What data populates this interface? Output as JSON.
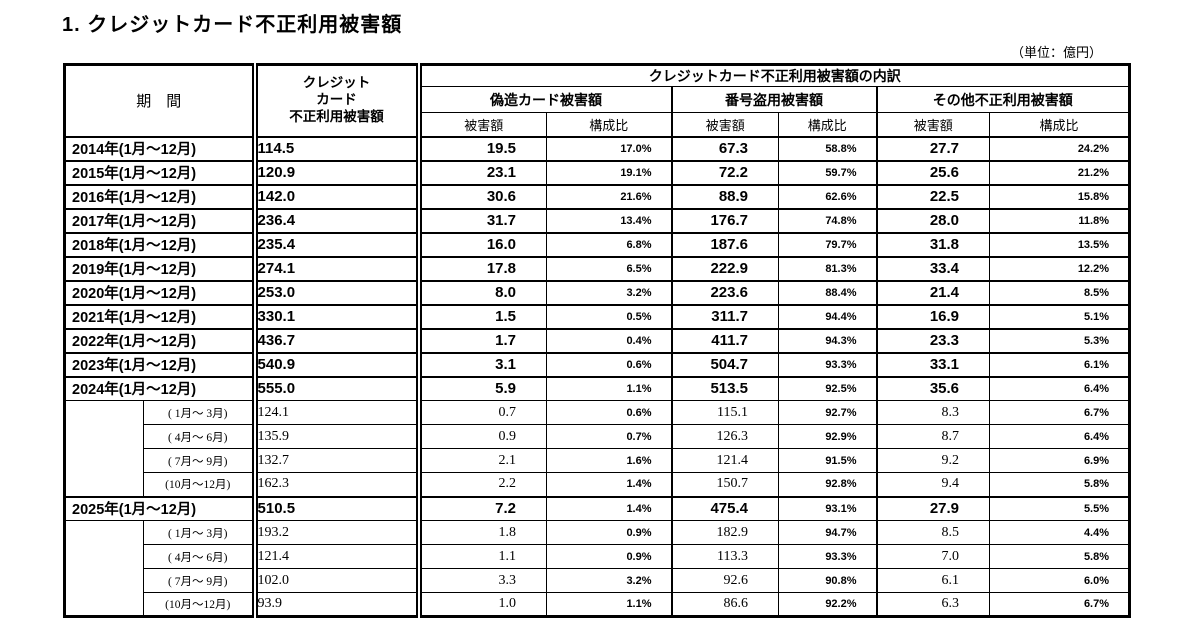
{
  "title": "1. クレジットカード不正利用被害額",
  "unit_note": "（単位：億円）",
  "table": {
    "headers": {
      "period": "期　間",
      "total_lines": [
        "クレジット",
        "カード",
        "不正利用被害額"
      ],
      "breakdown": "クレジットカード不正利用被害額の内訳",
      "groups": [
        "偽造カード被害額",
        "番号盗用被害額",
        "その他不正利用被害額"
      ],
      "sub_amount": "被害額",
      "sub_ratio": "構成比"
    },
    "rows": [
      {
        "type": "year",
        "period": "2014年(1月～12月)",
        "total": "114.5",
        "counterfeit": "19.5",
        "counterfeit_ratio": "17.0%",
        "number_theft": "67.3",
        "number_theft_ratio": "58.8%",
        "other": "27.7",
        "other_ratio": "24.2%"
      },
      {
        "type": "year",
        "period": "2015年(1月～12月)",
        "total": "120.9",
        "counterfeit": "23.1",
        "counterfeit_ratio": "19.1%",
        "number_theft": "72.2",
        "number_theft_ratio": "59.7%",
        "other": "25.6",
        "other_ratio": "21.2%"
      },
      {
        "type": "year",
        "period": "2016年(1月～12月)",
        "total": "142.0",
        "counterfeit": "30.6",
        "counterfeit_ratio": "21.6%",
        "number_theft": "88.9",
        "number_theft_ratio": "62.6%",
        "other": "22.5",
        "other_ratio": "15.8%"
      },
      {
        "type": "year",
        "period": "2017年(1月～12月)",
        "total": "236.4",
        "counterfeit": "31.7",
        "counterfeit_ratio": "13.4%",
        "number_theft": "176.7",
        "number_theft_ratio": "74.8%",
        "other": "28.0",
        "other_ratio": "11.8%"
      },
      {
        "type": "year",
        "period": "2018年(1月～12月)",
        "total": "235.4",
        "counterfeit": "16.0",
        "counterfeit_ratio": "6.8%",
        "number_theft": "187.6",
        "number_theft_ratio": "79.7%",
        "other": "31.8",
        "other_ratio": "13.5%"
      },
      {
        "type": "year",
        "period": "2019年(1月～12月)",
        "total": "274.1",
        "counterfeit": "17.8",
        "counterfeit_ratio": "6.5%",
        "number_theft": "222.9",
        "number_theft_ratio": "81.3%",
        "other": "33.4",
        "other_ratio": "12.2%"
      },
      {
        "type": "year",
        "period": "2020年(1月～12月)",
        "total": "253.0",
        "counterfeit": "8.0",
        "counterfeit_ratio": "3.2%",
        "number_theft": "223.6",
        "number_theft_ratio": "88.4%",
        "other": "21.4",
        "other_ratio": "8.5%"
      },
      {
        "type": "year",
        "period": "2021年(1月～12月)",
        "total": "330.1",
        "counterfeit": "1.5",
        "counterfeit_ratio": "0.5%",
        "number_theft": "311.7",
        "number_theft_ratio": "94.4%",
        "other": "16.9",
        "other_ratio": "5.1%"
      },
      {
        "type": "year",
        "period": "2022年(1月～12月)",
        "total": "436.7",
        "counterfeit": "1.7",
        "counterfeit_ratio": "0.4%",
        "number_theft": "411.7",
        "number_theft_ratio": "94.3%",
        "other": "23.3",
        "other_ratio": "5.3%"
      },
      {
        "type": "year",
        "period": "2023年(1月～12月)",
        "total": "540.9",
        "counterfeit": "3.1",
        "counterfeit_ratio": "0.6%",
        "number_theft": "504.7",
        "number_theft_ratio": "93.3%",
        "other": "33.1",
        "other_ratio": "6.1%"
      },
      {
        "type": "year",
        "period": "2024年(1月～12月)",
        "total": "555.0",
        "counterfeit": "5.9",
        "counterfeit_ratio": "1.1%",
        "number_theft": "513.5",
        "number_theft_ratio": "92.5%",
        "other": "35.6",
        "other_ratio": "6.4%"
      },
      {
        "type": "quarter",
        "period": "( 1月～ 3月)",
        "total": "124.1",
        "counterfeit": "0.7",
        "counterfeit_ratio": "0.6%",
        "number_theft": "115.1",
        "number_theft_ratio": "92.7%",
        "other": "8.3",
        "other_ratio": "6.7%"
      },
      {
        "type": "quarter",
        "period": "( 4月～ 6月)",
        "total": "135.9",
        "counterfeit": "0.9",
        "counterfeit_ratio": "0.7%",
        "number_theft": "126.3",
        "number_theft_ratio": "92.9%",
        "other": "8.7",
        "other_ratio": "6.4%"
      },
      {
        "type": "quarter",
        "period": "( 7月～ 9月)",
        "total": "132.7",
        "counterfeit": "2.1",
        "counterfeit_ratio": "1.6%",
        "number_theft": "121.4",
        "number_theft_ratio": "91.5%",
        "other": "9.2",
        "other_ratio": "6.9%"
      },
      {
        "type": "quarter",
        "period": "(10月～12月)",
        "total": "162.3",
        "counterfeit": "2.2",
        "counterfeit_ratio": "1.4%",
        "number_theft": "150.7",
        "number_theft_ratio": "92.8%",
        "other": "9.4",
        "other_ratio": "5.8%"
      },
      {
        "type": "year",
        "period": "2025年(1月～12月)",
        "total": "510.5",
        "counterfeit": "7.2",
        "counterfeit_ratio": "1.4%",
        "number_theft": "475.4",
        "number_theft_ratio": "93.1%",
        "other": "27.9",
        "other_ratio": "5.5%"
      },
      {
        "type": "quarter",
        "period": "( 1月～ 3月)",
        "total": "193.2",
        "counterfeit": "1.8",
        "counterfeit_ratio": "0.9%",
        "number_theft": "182.9",
        "number_theft_ratio": "94.7%",
        "other": "8.5",
        "other_ratio": "4.4%"
      },
      {
        "type": "quarter",
        "period": "( 4月～ 6月)",
        "total": "121.4",
        "counterfeit": "1.1",
        "counterfeit_ratio": "0.9%",
        "number_theft": "113.3",
        "number_theft_ratio": "93.3%",
        "other": "7.0",
        "other_ratio": "5.8%"
      },
      {
        "type": "quarter",
        "period": "( 7月～ 9月)",
        "total": "102.0",
        "counterfeit": "3.3",
        "counterfeit_ratio": "3.2%",
        "number_theft": "92.6",
        "number_theft_ratio": "90.8%",
        "other": "6.1",
        "other_ratio": "6.0%"
      },
      {
        "type": "quarter",
        "period": "(10月～12月)",
        "total": "93.9",
        "counterfeit": "1.0",
        "counterfeit_ratio": "1.1%",
        "number_theft": "86.6",
        "number_theft_ratio": "92.2%",
        "other": "6.3",
        "other_ratio": "6.7%"
      }
    ]
  }
}
